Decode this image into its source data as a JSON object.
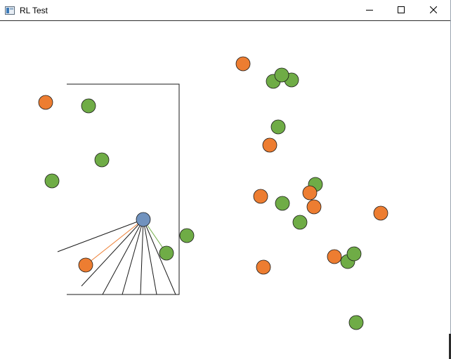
{
  "window": {
    "title": "RL Test",
    "icons": {
      "app": "app-window-icon",
      "minimize": "minimize-icon",
      "maximize": "maximize-icon",
      "close": "close-icon"
    }
  },
  "colors": {
    "green": "#6fac46",
    "orange": "#ed7d31",
    "agent": "#7092be",
    "stroke": "#1a1a1a",
    "sensor_default": "#1a1a1a",
    "sensor_orange": "#ed7d31",
    "sensor_green": "#6fac46"
  }
}
